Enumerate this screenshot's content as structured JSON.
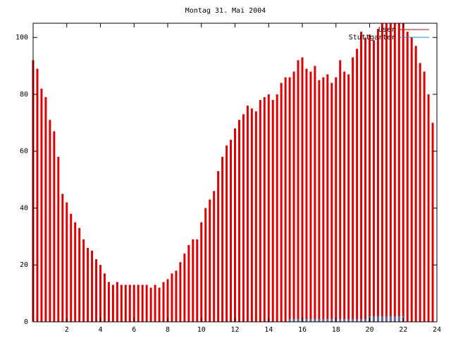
{
  "chart_data": {
    "type": "impulse",
    "title": "Montag 31. Mai 2004",
    "x": [
      0,
      0.25,
      0.5,
      0.75,
      1,
      1.25,
      1.5,
      1.75,
      2,
      2.25,
      2.5,
      2.75,
      3,
      3.25,
      3.5,
      3.75,
      4,
      4.25,
      4.5,
      4.75,
      5,
      5.25,
      5.5,
      5.75,
      6,
      6.25,
      6.5,
      6.75,
      7,
      7.25,
      7.5,
      7.75,
      8,
      8.25,
      8.5,
      8.75,
      9,
      9.25,
      9.5,
      9.75,
      10,
      10.25,
      10.5,
      10.75,
      11,
      11.25,
      11.5,
      11.75,
      12,
      12.25,
      12.5,
      12.75,
      13,
      13.25,
      13.5,
      13.75,
      14,
      14.25,
      14.5,
      14.75,
      15,
      15.25,
      15.5,
      15.75,
      16,
      16.25,
      16.5,
      16.75,
      17,
      17.25,
      17.5,
      17.75,
      18,
      18.25,
      18.5,
      18.75,
      19,
      19.25,
      19.5,
      19.75,
      20,
      20.25,
      20.5,
      20.75,
      21,
      21.25,
      21.5,
      21.75,
      22,
      22.25,
      22.5,
      22.75,
      23,
      23.25,
      23.5,
      23.75
    ],
    "series": [
      {
        "name": "User",
        "color": "#e00000",
        "values": [
          92,
          89,
          82,
          79,
          71,
          67,
          58,
          45,
          42,
          38,
          35,
          33,
          29,
          26,
          25,
          22,
          20,
          17,
          14,
          13,
          14,
          13,
          13,
          13,
          13,
          13,
          13,
          13,
          12,
          13,
          12,
          14,
          15,
          17,
          18,
          21,
          24,
          27,
          29,
          29,
          35,
          40,
          43,
          46,
          53,
          58,
          62,
          64,
          68,
          71,
          73,
          76,
          75,
          74,
          78,
          79,
          80,
          78,
          80,
          84,
          86,
          86,
          88,
          92,
          93,
          89,
          88,
          90,
          85,
          86,
          87,
          84,
          86,
          92,
          88,
          87,
          93,
          96,
          102,
          100,
          101,
          99,
          103,
          105,
          105,
          105,
          105,
          105,
          105,
          102,
          100,
          97,
          91,
          88,
          80,
          70
        ]
      },
      {
        "name": "Stuttgarter",
        "color": "#1e8fd0",
        "values": [
          0,
          0,
          0,
          0,
          0,
          0,
          0,
          0,
          0,
          0,
          0,
          0,
          0,
          0,
          0,
          0,
          0,
          0,
          0,
          0,
          0,
          0,
          0,
          0,
          0,
          0,
          0,
          0,
          0,
          0,
          0,
          0,
          0,
          0,
          0,
          0,
          0,
          0,
          0,
          0,
          0,
          0,
          0,
          0,
          0,
          0,
          0,
          0,
          0,
          0,
          0,
          0,
          0,
          0,
          0,
          0,
          0,
          0,
          0,
          0,
          0,
          1,
          1,
          1,
          1,
          1,
          1,
          1,
          1,
          1,
          1,
          1,
          1,
          1,
          1,
          1,
          1,
          1,
          1,
          1,
          2,
          2,
          2,
          2,
          2,
          2,
          2,
          2,
          2,
          0,
          0,
          0,
          0,
          0,
          0,
          0
        ]
      }
    ],
    "xlim": [
      0,
      24
    ],
    "xticks": [
      2,
      4,
      6,
      8,
      10,
      12,
      14,
      16,
      18,
      20,
      22,
      24
    ],
    "ylim": [
      0,
      105
    ],
    "yticks": [
      0,
      20,
      40,
      60,
      80,
      100
    ],
    "legend": "top-right"
  }
}
